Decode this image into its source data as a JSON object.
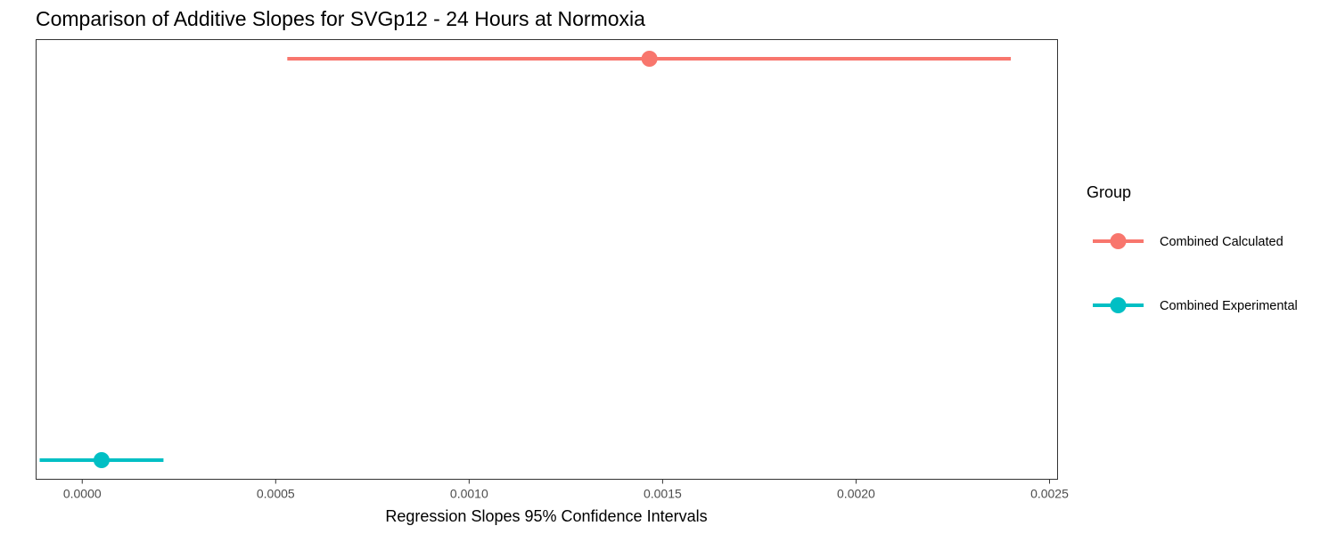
{
  "chart_data": {
    "type": "scatter",
    "title": "Comparison of Additive Slopes for SVGp12 - 24 Hours at Normoxia",
    "xlabel": "Regression Slopes 95% Confidence Intervals",
    "ylabel": "",
    "xlim": [
      -0.00011,
      0.00253
    ],
    "x_ticks": [
      0.0,
      0.0005,
      0.001,
      0.0015,
      0.002,
      0.0025
    ],
    "x_tick_labels": [
      "0.0000",
      "0.0005",
      "0.0010",
      "0.0015",
      "0.0020",
      "0.0025"
    ],
    "grid": false,
    "legend_title": "Group",
    "legend_position": "right",
    "series": [
      {
        "name": "Combined Calculated",
        "color": "#F8766D",
        "estimate": 0.001466,
        "ci_low": 0.00053,
        "ci_high": 0.0024
      },
      {
        "name": "Combined Experimental",
        "color": "#00BFC4",
        "estimate": 5e-05,
        "ci_low": -0.00011,
        "ci_high": 0.00021
      }
    ]
  }
}
